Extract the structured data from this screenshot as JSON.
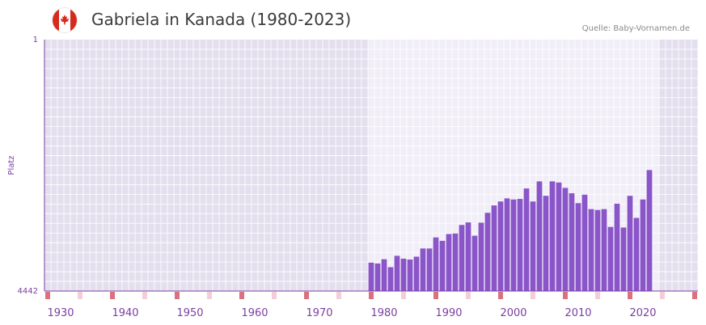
{
  "header": {
    "title": "Gabriela in Kanada (1980-2023)",
    "source": "Quelle: Baby-Vornamen.de",
    "flag_icon": "canada-flag-icon"
  },
  "colors": {
    "bar": "#8a55c9",
    "axis": "#7a3fa0",
    "bg_dark": "#e4dfee",
    "bg_light": "#f1eef8",
    "grid": "#ffffff",
    "marker_dark": "#d9727e",
    "marker_light": "#f2cfd6"
  },
  "chart_data": {
    "type": "bar",
    "title": "Gabriela in Kanada (1980-2023)",
    "ylabel": "Platz",
    "xlabel": "",
    "y_axis_inverted": true,
    "ylim": [
      1,
      4442
    ],
    "y_ticks": [
      "1",
      "4442"
    ],
    "x_range": [
      1928,
      2029
    ],
    "x_ticks": [
      "1930",
      "1940",
      "1950",
      "1960",
      "1970",
      "1980",
      "1990",
      "2000",
      "2010",
      "2020"
    ],
    "highlight_range": [
      1978,
      2022
    ],
    "years": [
      1978,
      1979,
      1980,
      1981,
      1982,
      1983,
      1984,
      1985,
      1986,
      1987,
      1988,
      1989,
      1990,
      1991,
      1992,
      1993,
      1994,
      1995,
      1996,
      1997,
      1998,
      1999,
      2000,
      2001,
      2002,
      2003,
      2004,
      2005,
      2006,
      2007,
      2008,
      2009,
      2010,
      2011,
      2012,
      2013,
      2014,
      2015,
      2016,
      2017,
      2018,
      2019,
      2020,
      2021,
      2022
    ],
    "ranks": [
      3940,
      3955,
      3880,
      4020,
      3820,
      3870,
      3885,
      3835,
      3690,
      3690,
      3495,
      3555,
      3435,
      3425,
      3275,
      3230,
      3465,
      3235,
      3060,
      2930,
      2860,
      2805,
      2825,
      2815,
      2630,
      2860,
      2505,
      2760,
      2505,
      2525,
      2620,
      2715,
      2890,
      2740,
      2995,
      3010,
      2995,
      3310,
      2900,
      3320,
      2760,
      3150,
      2825,
      2305,
      4442
    ]
  }
}
